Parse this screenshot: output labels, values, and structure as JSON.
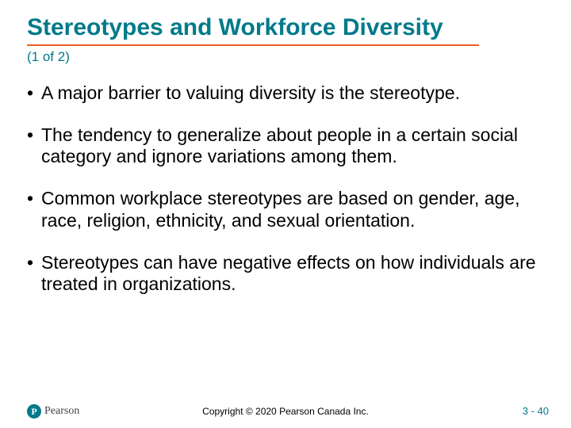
{
  "colors": {
    "title": "#007a8a",
    "underline": "#f05a28",
    "subtitle": "#007a8a",
    "body_text": "#000000",
    "footer_text": "#000000",
    "logo_badge_bg": "#007a8a",
    "logo_text": "#444444",
    "pagenum": "#007a8a",
    "background": "#ffffff"
  },
  "title": "Stereotypes and Workforce Diversity",
  "subtitle": "(1 of 2)",
  "bullets": [
    "A major barrier to valuing diversity is the stereotype.",
    "The tendency to generalize about people in a certain social category and ignore variations among them.",
    "Common workplace stereotypes are based on gender, age, race, religion, ethnicity, and sexual orientation.",
    "Stereotypes can have negative effects on how individuals are treated in organizations."
  ],
  "logo": {
    "badge_letter": "P",
    "brand": "Pearson"
  },
  "copyright": "Copyright © 2020 Pearson Canada Inc.",
  "page_number": "3 - 40"
}
